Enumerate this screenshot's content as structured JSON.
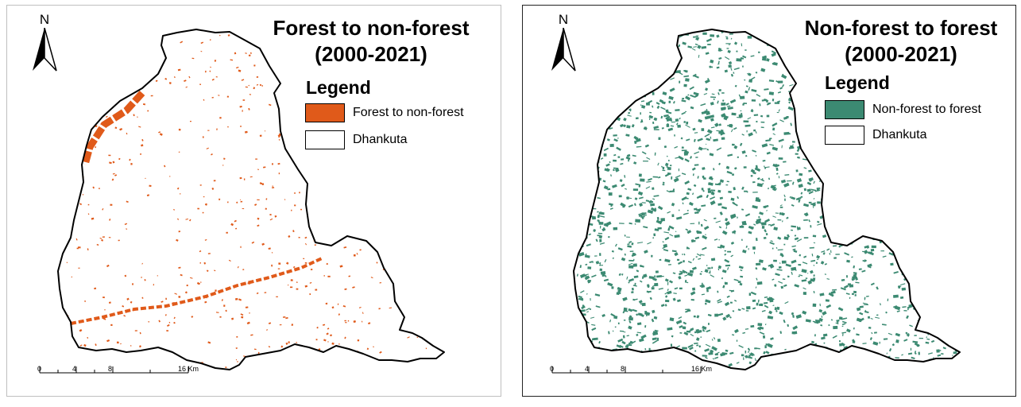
{
  "maps": [
    {
      "north_label": "N",
      "title_line1": "Forest to non-forest",
      "title_line2": "(2000-2021)",
      "legend_heading": "Legend",
      "legend": [
        {
          "label": "Forest to non-forest",
          "color": "#e05a1a"
        },
        {
          "label": "Dhankuta",
          "color": "#ffffff"
        }
      ],
      "scale": {
        "ticks": [
          "0",
          "4",
          "8",
          "16 Km"
        ]
      }
    },
    {
      "north_label": "N",
      "title_line1": "Non-forest to forest",
      "title_line2": "(2000-2021)",
      "legend_heading": "Legend",
      "legend": [
        {
          "label": "Non-forest to forest",
          "color": "#3c8a72"
        },
        {
          "label": "Dhankuta",
          "color": "#ffffff"
        }
      ],
      "scale": {
        "ticks": [
          "0",
          "4",
          "8",
          "16 Km"
        ]
      }
    }
  ]
}
